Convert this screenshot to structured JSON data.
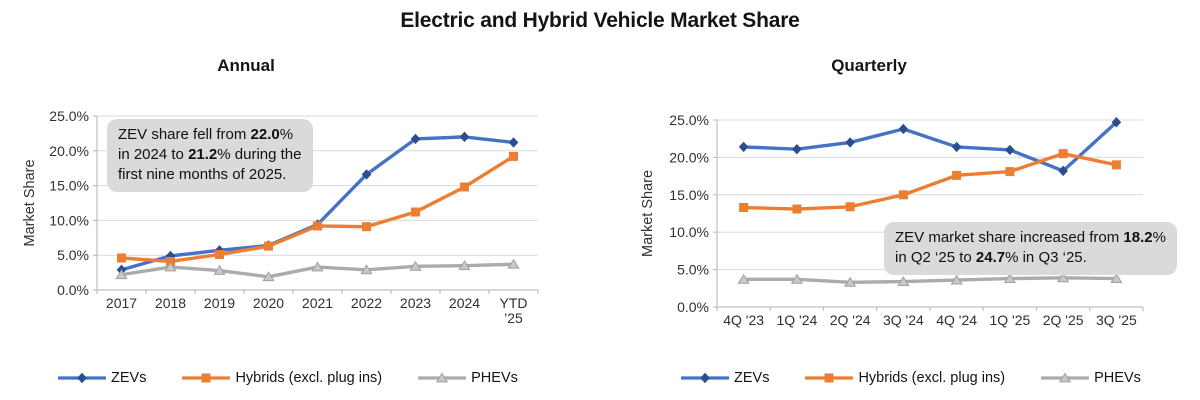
{
  "page_title": "Electric and Hybrid Vehicle Market Share",
  "colors": {
    "zev_line": "#4472C4",
    "zev_marker": "#2C4D8E",
    "hybrid_line": "#ED7D31",
    "hybrid_marker": "#ED7D31",
    "phev_line": "#ABABAB",
    "phev_marker": "#C8C8C8",
    "gridline": "#D9D9D9",
    "axis": "#BFBFBF",
    "annotation_bg": "#DADADA"
  },
  "legend": {
    "items": [
      {
        "label": "ZEVs",
        "marker": "diamond",
        "line_color": "#4472C4",
        "marker_color": "#2C4D8E"
      },
      {
        "label": "Hybrids (excl. plug ins)",
        "marker": "square",
        "line_color": "#ED7D31",
        "marker_color": "#ED7D31"
      },
      {
        "label": "PHEVs",
        "marker": "triangle",
        "line_color": "#ABABAB",
        "marker_color": "#C8C8C8"
      }
    ]
  },
  "chart_data": [
    {
      "id": "annual",
      "type": "line",
      "title": "Annual",
      "ylabel": "Market Share",
      "ylim": [
        0,
        25
      ],
      "ytick_values": [
        0,
        5,
        10,
        15,
        20,
        25
      ],
      "ytick_labels": [
        "0.0%",
        "5.0%",
        "10.0%",
        "15.0%",
        "20.0%",
        "25.0%"
      ],
      "grid": true,
      "legend_position": "bottom",
      "categories": [
        "2017",
        "2018",
        "2019",
        "2020",
        "2021",
        "2022",
        "2023",
        "2024",
        "YTD\n’25"
      ],
      "series": [
        {
          "name": "ZEVs",
          "marker": "diamond",
          "line_color": "#4472C4",
          "marker_color": "#2C4D8E",
          "values": [
            2.9,
            4.9,
            5.7,
            6.4,
            9.4,
            16.6,
            21.7,
            22.0,
            21.2
          ]
        },
        {
          "name": "Hybrids (excl. plug ins)",
          "marker": "square",
          "line_color": "#ED7D31",
          "marker_color": "#ED7D31",
          "values": [
            4.6,
            4.1,
            5.1,
            6.3,
            9.2,
            9.1,
            11.2,
            14.8,
            19.2
          ]
        },
        {
          "name": "PHEVs",
          "marker": "triangle",
          "line_color": "#ABABAB",
          "marker_color": "#C8C8C8",
          "values": [
            2.2,
            3.3,
            2.8,
            1.9,
            3.3,
            2.9,
            3.4,
            3.5,
            3.7
          ]
        }
      ],
      "annotation_parts": [
        {
          "t": "ZEV share fell from ",
          "b": 0
        },
        {
          "t": "22.0",
          "b": 1
        },
        {
          "t": "%\nin 2024 to ",
          "b": 0
        },
        {
          "t": "21.2",
          "b": 1
        },
        {
          "t": "% during the\nfirst nine months of 2025.",
          "b": 0
        }
      ]
    },
    {
      "id": "quarterly",
      "type": "line",
      "title": "Quarterly",
      "ylabel": "Market Share",
      "ylim": [
        0,
        25
      ],
      "ytick_values": [
        0,
        5,
        10,
        15,
        20,
        25
      ],
      "ytick_labels": [
        "0.0%",
        "5.0%",
        "10.0%",
        "15.0%",
        "20.0%",
        "25.0%"
      ],
      "grid": true,
      "legend_position": "bottom",
      "categories": [
        "4Q '23",
        "1Q '24",
        "2Q '24",
        "3Q '24",
        "4Q '24",
        "1Q '25",
        "2Q '25",
        "3Q '25"
      ],
      "series": [
        {
          "name": "ZEVs",
          "marker": "diamond",
          "line_color": "#4472C4",
          "marker_color": "#2C4D8E",
          "values": [
            21.4,
            21.1,
            22.0,
            23.8,
            21.4,
            21.0,
            18.2,
            24.7
          ]
        },
        {
          "name": "Hybrids (excl. plug ins)",
          "marker": "square",
          "line_color": "#ED7D31",
          "marker_color": "#ED7D31",
          "values": [
            13.3,
            13.1,
            13.4,
            15.0,
            17.6,
            18.1,
            20.5,
            19.0
          ]
        },
        {
          "name": "PHEVs",
          "marker": "triangle",
          "line_color": "#ABABAB",
          "marker_color": "#C8C8C8",
          "values": [
            3.7,
            3.7,
            3.3,
            3.4,
            3.6,
            3.8,
            3.9,
            3.8
          ]
        }
      ],
      "annotation_parts": [
        {
          "t": "ZEV market share increased from ",
          "b": 0
        },
        {
          "t": "18.2",
          "b": 1
        },
        {
          "t": "%\nin Q2 ‘25 to ",
          "b": 0
        },
        {
          "t": "24.7",
          "b": 1
        },
        {
          "t": "% in Q3 ‘25.",
          "b": 0
        }
      ]
    }
  ]
}
